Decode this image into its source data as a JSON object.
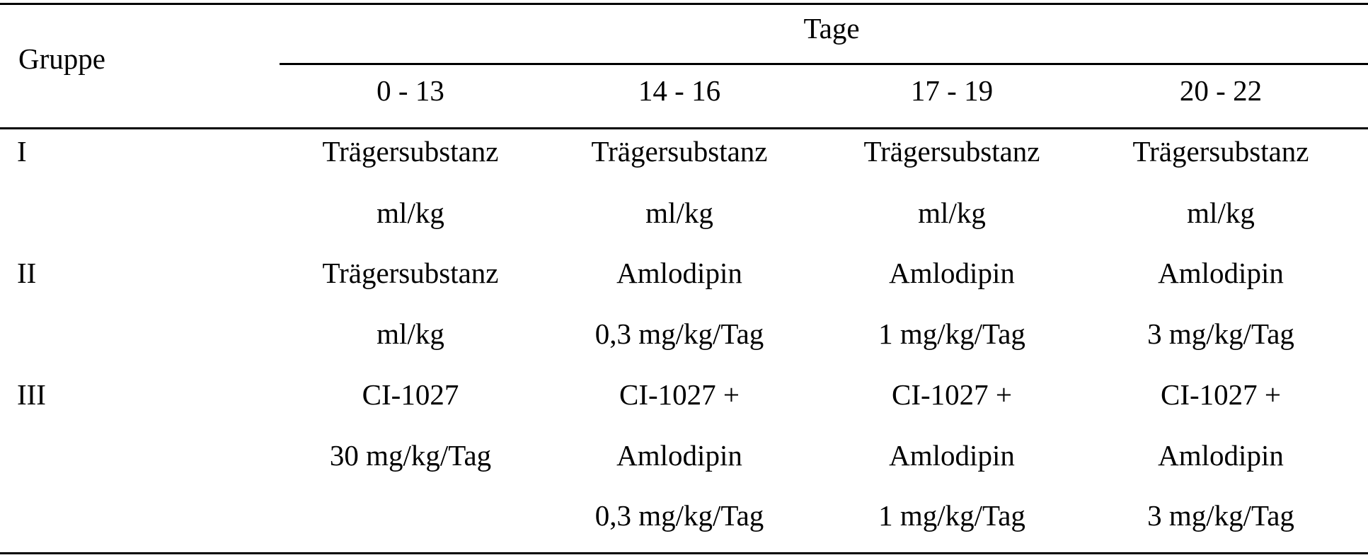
{
  "table": {
    "header": {
      "group_label": "Gruppe",
      "days_label": "Tage",
      "periods": [
        "0 - 13",
        "14 - 16",
        "17 - 19",
        "20 - 22"
      ]
    },
    "rows": [
      {
        "group": "I",
        "cells": [
          [
            "Trägersubstanz",
            "ml/kg"
          ],
          [
            "Trägersubstanz",
            "ml/kg"
          ],
          [
            "Trägersubstanz",
            "ml/kg"
          ],
          [
            "Trägersubstanz",
            "ml/kg"
          ]
        ]
      },
      {
        "group": "II",
        "cells": [
          [
            "Trägersubstanz",
            "ml/kg"
          ],
          [
            "Amlodipin",
            "0,3 mg/kg/Tag"
          ],
          [
            "Amlodipin",
            "1 mg/kg/Tag"
          ],
          [
            "Amlodipin",
            "3 mg/kg/Tag"
          ]
        ]
      },
      {
        "group": "III",
        "cells": [
          [
            "CI-1027",
            "30 mg/kg/Tag"
          ],
          [
            "CI-1027 +",
            "Amlodipin",
            "0,3 mg/kg/Tag"
          ],
          [
            "CI-1027 +",
            "Amlodipin",
            "1 mg/kg/Tag"
          ],
          [
            "CI-1027 +",
            "Amlodipin",
            "3 mg/kg/Tag"
          ]
        ]
      }
    ]
  }
}
